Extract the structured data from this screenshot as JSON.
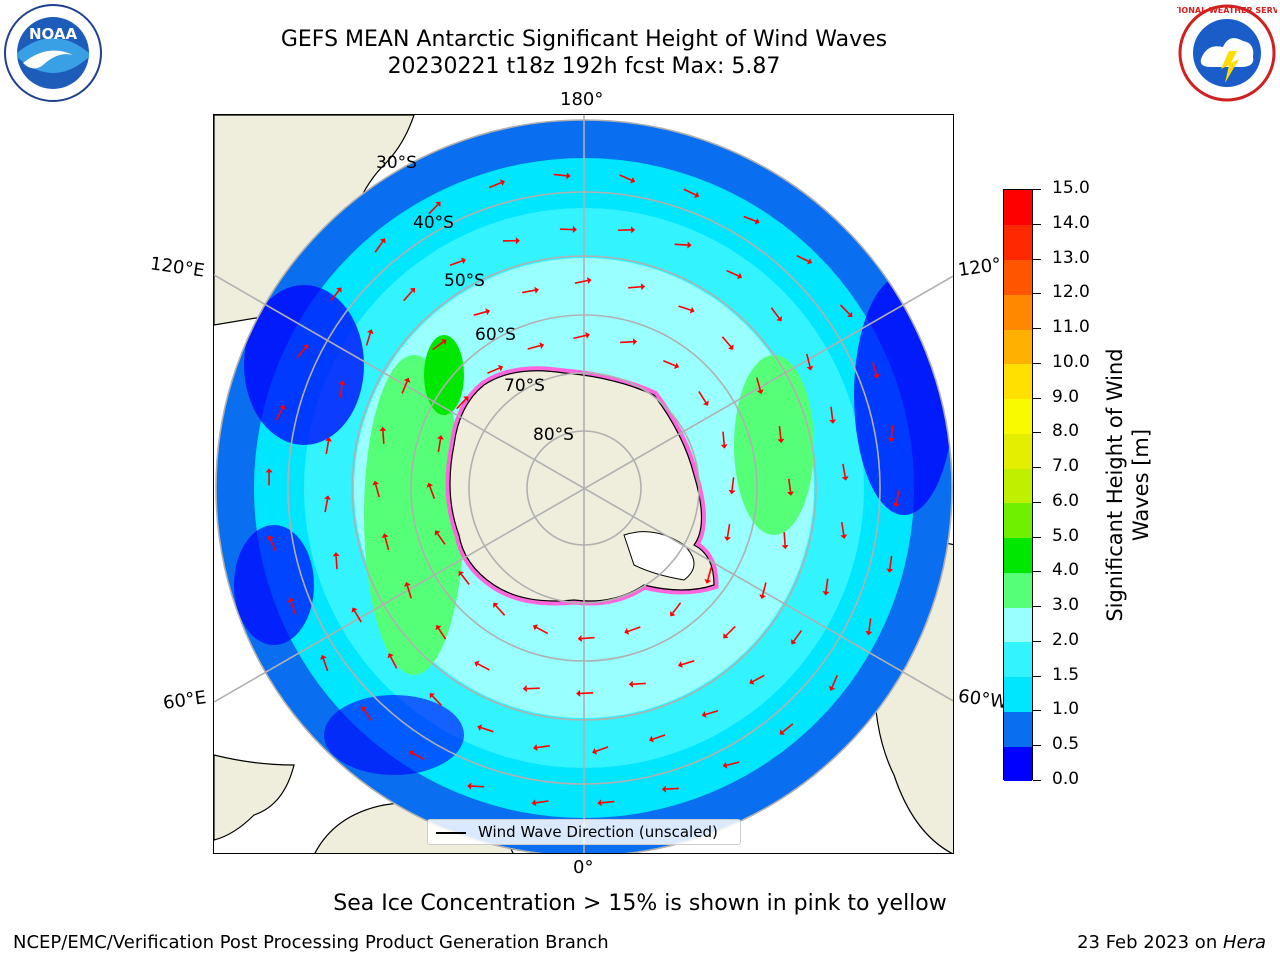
{
  "title": {
    "line1": "GEFS MEAN Antarctic Significant Height of Wind Waves",
    "line2": "20230221 t18z 192h fcst   Max: 5.87"
  },
  "map": {
    "projection": "south-polar-stereographic",
    "longitude_labels": {
      "top": "180°",
      "bottom": "0°",
      "left_upper": "120°E",
      "left_lower": "60°E",
      "right_upper": "120°",
      "right_lower": "60°W"
    },
    "latitude_labels": [
      "30°S",
      "40°S",
      "50°S",
      "60°S",
      "70°S",
      "80°S"
    ],
    "legend": "Wind Wave Direction (unscaled)",
    "colors": {
      "land": "#efeedc",
      "grid": "#b0b0b0",
      "arrow": "#ff0000",
      "ice": "#ff66dd"
    }
  },
  "colorbar": {
    "title_line1": "Significant Height of Wind",
    "title_line2": "Waves [m]",
    "ticks": [
      "0.0",
      "0.5",
      "1.0",
      "1.5",
      "2.0",
      "3.0",
      "4.0",
      "5.0",
      "6.0",
      "7.0",
      "8.0",
      "9.0",
      "10.0",
      "11.0",
      "12.0",
      "13.0",
      "14.0",
      "15.0"
    ],
    "colors": [
      "#0000ff",
      "#0a6ef0",
      "#00e6ff",
      "#33f3ff",
      "#99ffff",
      "#55ff77",
      "#00e800",
      "#6ef000",
      "#c0f000",
      "#e4ee00",
      "#f9f900",
      "#ffe000",
      "#ffb000",
      "#ff8800",
      "#ff5500",
      "#ff2800",
      "#ff0000"
    ]
  },
  "footnote": "Sea Ice Concentration > 15% is shown in pink to yellow",
  "credit": "NCEP/EMC/Verification Post Processing Product Generation Branch",
  "stamp": {
    "date": "23 Feb 2023 on ",
    "machine": "Hera"
  },
  "logos": {
    "noaa": "NOAA",
    "nws": "NATIONAL WEATHER SERVICE"
  }
}
